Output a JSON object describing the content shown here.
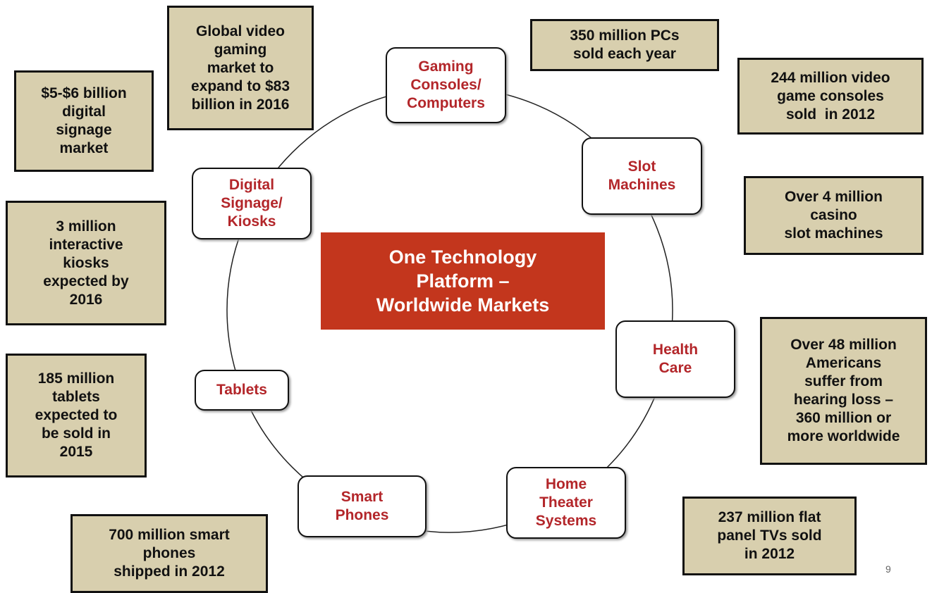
{
  "center": {
    "lines": [
      "One Technology",
      "Platform –",
      "Worldwide Markets"
    ]
  },
  "nodes": [
    {
      "lines": [
        "Gaming",
        "Consoles/",
        "Computers"
      ]
    },
    {
      "lines": [
        "Slot",
        "Machines"
      ]
    },
    {
      "lines": [
        "Digital",
        "Signage/",
        "Kiosks"
      ]
    },
    {
      "lines": [
        "Health",
        "Care"
      ]
    },
    {
      "lines": [
        "Tablets"
      ]
    },
    {
      "lines": [
        "Smart",
        "Phones"
      ]
    },
    {
      "lines": [
        "Home",
        "Theater",
        "Systems"
      ]
    }
  ],
  "facts": [
    {
      "lines": [
        "Global video",
        "gaming",
        "market to",
        "expand to $83",
        "billion in 2016"
      ]
    },
    {
      "lines": [
        "350 million PCs",
        "sold each year"
      ]
    },
    {
      "lines": [
        "244 million video",
        "game consoles",
        "sold  in 2012"
      ]
    },
    {
      "lines": [
        "$5-$6 billion",
        "digital",
        "signage",
        "market"
      ]
    },
    {
      "lines": [
        "Over 4 million",
        "casino",
        "slot machines"
      ]
    },
    {
      "lines": [
        "3 million",
        "interactive",
        "kiosks",
        "expected by",
        "2016"
      ]
    },
    {
      "lines": [
        "Over 48 million",
        "Americans",
        "suffer from",
        "hearing loss –",
        "360 million or",
        "more worldwide"
      ]
    },
    {
      "lines": [
        "185 million",
        "tablets",
        "expected to",
        "be sold in",
        "2015"
      ]
    },
    {
      "lines": [
        "700 million smart",
        "phones",
        "shipped in 2012"
      ]
    },
    {
      "lines": [
        "237 million flat",
        "panel TVs sold",
        "in 2012"
      ]
    }
  ],
  "page_number": "9"
}
